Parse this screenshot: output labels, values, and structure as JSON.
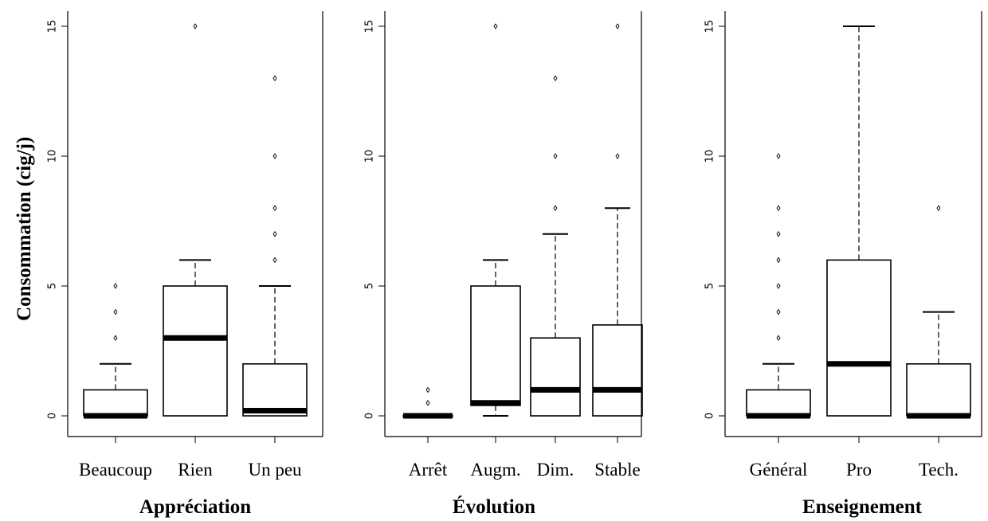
{
  "ylabel": "Consommation (cig/j)",
  "chart_data": [
    {
      "type": "boxplot",
      "xlabel": "Appréciation",
      "ylim": [
        0,
        15
      ],
      "yticks": [
        "0",
        "5",
        "10",
        "15"
      ],
      "categories": [
        "Beaucoup",
        "Rien",
        "Un peu"
      ],
      "boxes": [
        {
          "min": 0,
          "q1": 0,
          "median": 0,
          "q3": 1,
          "max": 2,
          "outliers": [
            3,
            4,
            5
          ]
        },
        {
          "min": 0,
          "q1": 0,
          "median": 3,
          "q3": 5,
          "max": 6,
          "outliers": [
            15
          ]
        },
        {
          "min": 0,
          "q1": 0,
          "median": 0.2,
          "q3": 2,
          "max": 5,
          "outliers": [
            6,
            7,
            8,
            10,
            13
          ]
        }
      ]
    },
    {
      "type": "boxplot",
      "xlabel": "Évolution",
      "ylim": [
        0,
        15
      ],
      "yticks": [
        "0",
        "5",
        "10",
        "15"
      ],
      "categories": [
        "Arrêt",
        "Augm.",
        "Dim.",
        "Stable"
      ],
      "boxes": [
        {
          "min": 0,
          "q1": 0,
          "median": 0,
          "q3": 0,
          "max": 0,
          "outliers": [
            0.5,
            1
          ]
        },
        {
          "min": 0,
          "q1": 0.4,
          "median": 0.5,
          "q3": 5,
          "max": 6,
          "outliers": [
            15
          ]
        },
        {
          "min": 0,
          "q1": 0,
          "median": 1,
          "q3": 3,
          "max": 7,
          "outliers": [
            8,
            10,
            13
          ]
        },
        {
          "min": 0,
          "q1": 0,
          "median": 1,
          "q3": 3.5,
          "max": 8,
          "outliers": [
            10,
            15
          ]
        }
      ]
    },
    {
      "type": "boxplot",
      "xlabel": "Enseignement",
      "ylim": [
        0,
        15
      ],
      "yticks": [
        "0",
        "5",
        "10",
        "15"
      ],
      "categories": [
        "Général",
        "Pro",
        "Tech."
      ],
      "boxes": [
        {
          "min": 0,
          "q1": 0,
          "median": 0,
          "q3": 1,
          "max": 2,
          "outliers": [
            3,
            4,
            5,
            6,
            7,
            8,
            10
          ]
        },
        {
          "min": 0,
          "q1": 0,
          "median": 2,
          "q3": 6,
          "max": 15,
          "outliers": []
        },
        {
          "min": 0,
          "q1": 0,
          "median": 0,
          "q3": 2,
          "max": 4,
          "outliers": [
            8
          ]
        }
      ]
    }
  ]
}
